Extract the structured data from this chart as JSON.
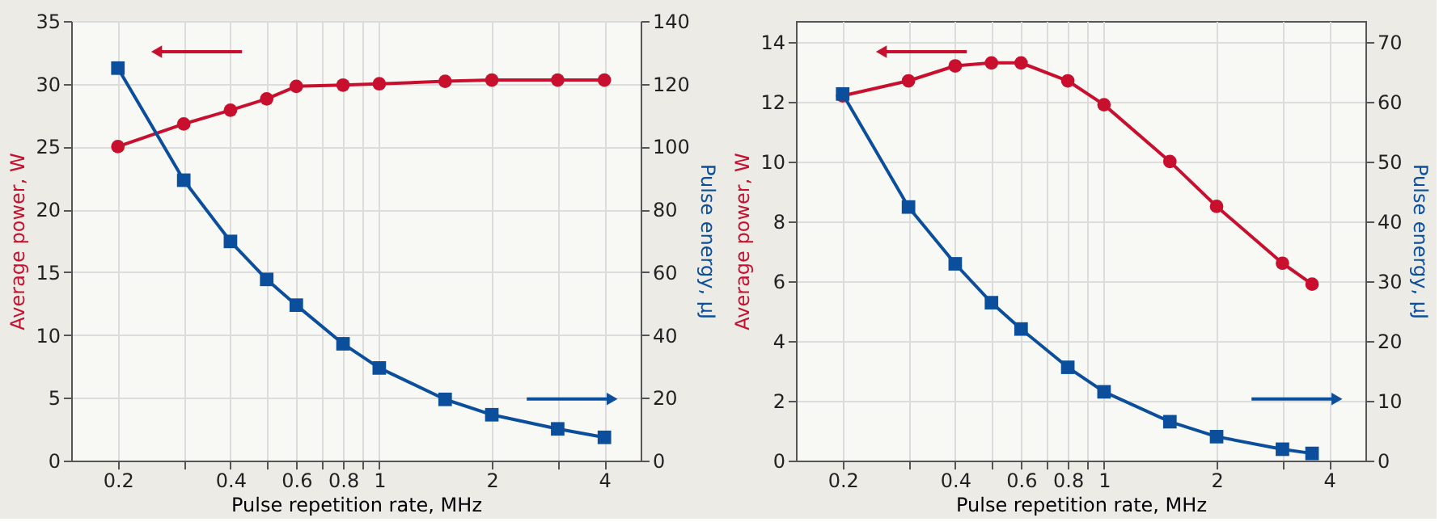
{
  "chart_data": [
    {
      "type": "line",
      "xlabel": "Pulse repetition rate, MHz",
      "ylabel": "Average power, W",
      "y2label": "Pulse energy, μJ",
      "log": "x",
      "grid": true,
      "xlim": [
        0.15,
        5
      ],
      "xticks": [
        0.2,
        {
          "value": 0.3,
          "label": null
        },
        0.4,
        {
          "value": 0.5,
          "label": null
        },
        0.6,
        {
          "value": 0.7,
          "label": null
        },
        0.8,
        {
          "value": 0.9,
          "label": null
        },
        1,
        2,
        {
          "value": 3,
          "label": null
        },
        4
      ],
      "ylim": [
        0,
        35
      ],
      "yticks": [
        0,
        5,
        10,
        15,
        20,
        25,
        30,
        35
      ],
      "y2lim": [
        0,
        140
      ],
      "y2ticks": [
        0,
        20,
        40,
        60,
        80,
        100,
        120,
        140
      ],
      "series": [
        {
          "color": "#c8102e",
          "marker": "circle",
          "x": [
            0.2,
            0.3,
            0.4,
            0.5,
            0.6,
            0.8,
            1,
            1.5,
            2,
            3,
            4
          ],
          "values": [
            25,
            26.8,
            27.9,
            28.8,
            29.8,
            29.9,
            30.0,
            30.2,
            30.3,
            30.3,
            30.3
          ]
        },
        {
          "color": "#0b4f9c",
          "marker": "square",
          "axis": "y2",
          "x": [
            0.2,
            0.3,
            0.4,
            0.5,
            0.6,
            0.8,
            1,
            1.5,
            2,
            3,
            4
          ],
          "values": [
            125,
            89.3,
            69.8,
            57.7,
            49.5,
            37.2,
            29.5,
            19.5,
            14.6,
            10.1,
            7.4
          ]
        }
      ]
    },
    {
      "type": "line",
      "xlabel": "Pulse repetition rate, MHz",
      "ylabel": "Average power, W",
      "y2label": "Pulse energy, μJ",
      "log": "x",
      "grid": true,
      "xlim": [
        0.15,
        5
      ],
      "xticks": [
        0.2,
        {
          "value": 0.3,
          "label": null
        },
        0.4,
        {
          "value": 0.5,
          "label": null
        },
        0.6,
        {
          "value": 0.7,
          "label": null
        },
        0.8,
        {
          "value": 0.9,
          "label": null
        },
        1,
        2,
        {
          "value": 3,
          "label": null
        },
        4
      ],
      "ylim": [
        0,
        14.7
      ],
      "yticks": [
        0,
        2,
        4,
        6,
        8,
        10,
        12,
        14
      ],
      "y2lim": [
        0,
        73.5
      ],
      "y2ticks": [
        0,
        10,
        20,
        30,
        40,
        50,
        60,
        70
      ],
      "series": [
        {
          "color": "#c8102e",
          "marker": "circle",
          "x": [
            0.2,
            0.3,
            0.4,
            0.5,
            0.6,
            0.8,
            1,
            1.5,
            2,
            3,
            3.6
          ],
          "values": [
            12.2,
            12.7,
            13.2,
            13.3,
            13.3,
            12.7,
            11.9,
            10.0,
            8.5,
            6.6,
            5.9
          ]
        },
        {
          "color": "#0b4f9c",
          "marker": "square",
          "axis": "y2",
          "x": [
            0.2,
            0.3,
            0.4,
            0.5,
            0.6,
            0.8,
            1,
            1.5,
            2,
            3,
            3.6
          ],
          "values": [
            61.3,
            42.4,
            32.9,
            26.4,
            22.0,
            15.6,
            11.5,
            6.5,
            4.0,
            1.9,
            1.2
          ]
        }
      ]
    }
  ]
}
